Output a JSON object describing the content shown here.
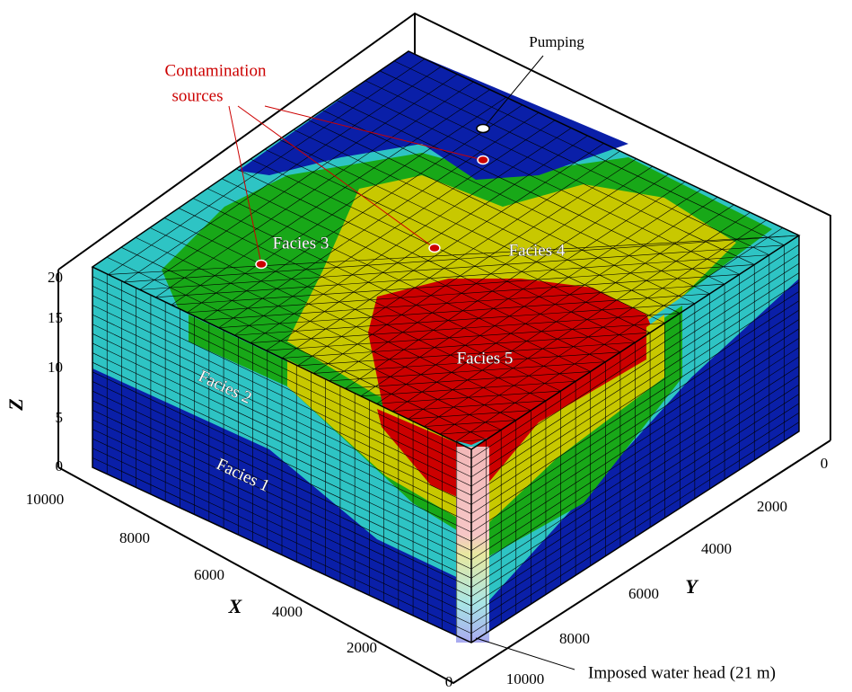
{
  "axes": {
    "z": {
      "label": "Z",
      "ticks": [
        0,
        5,
        10,
        15,
        20
      ]
    },
    "x": {
      "label": "X",
      "ticks": [
        10000,
        8000,
        6000,
        4000,
        2000,
        0
      ]
    },
    "y": {
      "label": "Y",
      "ticks": [
        0,
        2000,
        4000,
        6000,
        8000,
        10000
      ]
    }
  },
  "annotations": {
    "pumping": "Pumping",
    "contamination": [
      "Contamination",
      "sources"
    ],
    "facies": [
      "Facies 1",
      "Facies 2",
      "Facies 3",
      "Facies 4",
      "Facies 5"
    ],
    "boundary": "Imposed water head (21 m)"
  }
}
